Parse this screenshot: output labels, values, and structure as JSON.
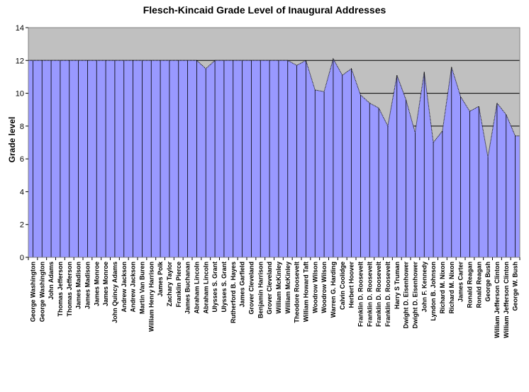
{
  "chart_data": {
    "type": "area",
    "title": "Flesch-Kincaid Grade Level of Inaugural Addresses",
    "xlabel": "",
    "ylabel": "Grade level",
    "ylim": [
      0,
      14
    ],
    "yticks": [
      0,
      2,
      4,
      6,
      8,
      10,
      12,
      14
    ],
    "grid": true,
    "legend": "none",
    "colors": {
      "fill": "#9999ff",
      "plot_bg": "#c0c0c0",
      "gridline": "#000000",
      "separator": "#000000"
    },
    "categories": [
      "George Washington",
      "George Washington",
      "John Adams",
      "Thomas Jefferson",
      "Thomas Jefferson",
      "James Madison",
      "James Madison",
      "James Monroe",
      "James Monroe",
      "John Quincy Adams",
      "Andrew Jackson",
      "Andrew Jackson",
      "Martin Van Buren",
      "William Henry Harrison",
      "James Polk",
      "Zachary Taylor",
      "Franklin Pierce",
      "James Buchanan",
      "Abraham Lincoln",
      "Abraham Lincoln",
      "Ulysses S. Grant",
      "Ulysses S. Grant",
      "Rutherford B. Hayes",
      "James Garfield",
      "Grover Cleveland",
      "Benjamin Harrison",
      "Grover Cleveland",
      "William McKinley",
      "William McKinley",
      "Theodore Roosevelt",
      "William Howard Taft",
      "Woodrow Wilson",
      "Woodrow Wilson",
      "Warren G. Harding",
      "Calvin Coolidge",
      "Herbert Hoover",
      "Franklin D. Roosevelt",
      "Franklin D. Roosevelt",
      "Franklin D. Roosevelt",
      "Franklin D. Roosevelt",
      "Harry S Truman",
      "Dwight D. Eisenhower",
      "Dwight D. Eisenhower",
      "John F. Kennedy",
      "Lyndon B. Johnson",
      "Richard M. Nixon",
      "Richard M. Nixon",
      "James Carter",
      "Ronald Reagan",
      "Ronald Reagan",
      "George Bush",
      "William Jefferson Clinton",
      "William Jefferson Clinton",
      "George W. Bush"
    ],
    "values": [
      12,
      12,
      12,
      12,
      12,
      12,
      12,
      12,
      12,
      12,
      12,
      12,
      12,
      12,
      12,
      12,
      12,
      12,
      12,
      11.5,
      12,
      12,
      12,
      12,
      12,
      12,
      12,
      12,
      12,
      11.7,
      12,
      10.2,
      10.1,
      12.1,
      11.1,
      11.5,
      9.9,
      9.4,
      9.1,
      8.0,
      11.1,
      9.6,
      7.6,
      11.3,
      7.0,
      7.7,
      11.6,
      9.8,
      8.9,
      9.2,
      6.1,
      9.4,
      8.7,
      7.4
    ]
  }
}
